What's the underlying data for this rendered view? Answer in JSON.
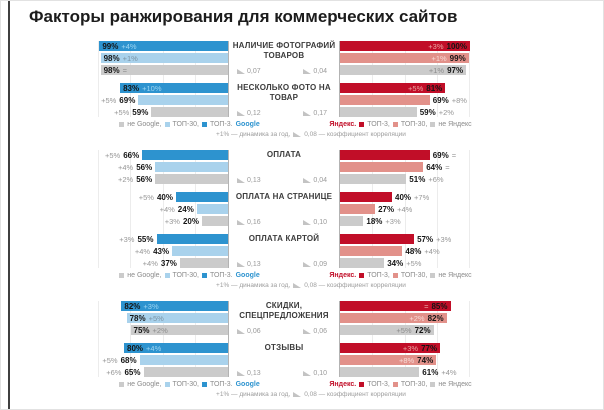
{
  "title": "Факторы ранжирования для коммерческих сайтов",
  "colors": {
    "google_top3": "#2D93CF",
    "google_top30": "#A9D2EC",
    "neutral": "#CBCBCB",
    "yandex_top3": "#C10E28",
    "yandex_top30": "#E2918A"
  },
  "legend_google": {
    "items": [
      {
        "label": "не Google,",
        "color_key": "neutral"
      },
      {
        "label": "ТОП-30,",
        "color_key": "google_top30"
      },
      {
        "label": "ТОП-3.",
        "color_key": "google_top3"
      }
    ],
    "brand": "Google"
  },
  "legend_yandex": {
    "brand": "Яндекс.",
    "items": [
      {
        "label": "ТОП-3,",
        "color_key": "yandex_top3"
      },
      {
        "label": "ТОП-30,",
        "color_key": "yandex_top30"
      },
      {
        "label": "не Яндекс",
        "color_key": "neutral"
      }
    ]
  },
  "footnote": {
    "dynamics": "+1% — динамика за год,",
    "correlation": "0,08 — коэффициент корреляции"
  },
  "chart_data": {
    "type": "bar",
    "orientation": "horizontal-paired",
    "unit": "%",
    "xlim": [
      0,
      100
    ],
    "grid": true,
    "engines": [
      "Google",
      "Яндекс"
    ],
    "series_order_google": [
      "ТОП-3",
      "ТОП-30",
      "не Google"
    ],
    "series_order_yandex": [
      "ТОП-3",
      "ТОП-30",
      "не Яндекс"
    ],
    "blocks": [
      {
        "factors": [
          {
            "label": "НАЛИЧИЕ ФОТОГРАФИЙ ТОВАРОВ",
            "google": {
              "corr": "0,07",
              "bars": [
                {
                  "v": 99,
                  "d": "+4%"
                },
                {
                  "v": 98,
                  "d": "+1%"
                },
                {
                  "v": 98,
                  "d": "="
                }
              ]
            },
            "yandex": {
              "corr": "0,04",
              "bars": [
                {
                  "v": 100,
                  "d": "+3%"
                },
                {
                  "v": 99,
                  "d": "+1%"
                },
                {
                  "v": 97,
                  "d": "+1%"
                }
              ]
            }
          },
          {
            "label": "НЕСКОЛЬКО ФОТО НА ТОВАР",
            "google": {
              "corr": "0,12",
              "bars": [
                {
                  "v": 83,
                  "d": "+10%"
                },
                {
                  "v": 69,
                  "d": "+5%"
                },
                {
                  "v": 59,
                  "d": "+5%"
                }
              ]
            },
            "yandex": {
              "corr": "0,17",
              "bars": [
                {
                  "v": 81,
                  "d": "+5%"
                },
                {
                  "v": 69,
                  "d": "+8%"
                },
                {
                  "v": 59,
                  "d": "+2%"
                }
              ]
            }
          }
        ]
      },
      {
        "factors": [
          {
            "label": "ОПЛАТА",
            "google": {
              "corr": "0,13",
              "bars": [
                {
                  "v": 66,
                  "d": "+5%"
                },
                {
                  "v": 56,
                  "d": "+4%"
                },
                {
                  "v": 56,
                  "d": "+2%"
                }
              ]
            },
            "yandex": {
              "corr": "0,04",
              "bars": [
                {
                  "v": 69,
                  "d": "="
                },
                {
                  "v": 64,
                  "d": "="
                },
                {
                  "v": 51,
                  "d": "+6%"
                }
              ]
            }
          },
          {
            "label": "ОПЛАТА НА СТРАНИЦЕ",
            "google": {
              "corr": "0,16",
              "bars": [
                {
                  "v": 40,
                  "d": "+5%"
                },
                {
                  "v": 24,
                  "d": "+4%"
                },
                {
                  "v": 20,
                  "d": "+3%"
                }
              ]
            },
            "yandex": {
              "corr": "0,10",
              "bars": [
                {
                  "v": 40,
                  "d": "+7%"
                },
                {
                  "v": 27,
                  "d": "+4%"
                },
                {
                  "v": 18,
                  "d": "+3%"
                }
              ]
            }
          },
          {
            "label": "ОПЛАТА КАРТОЙ",
            "google": {
              "corr": "0,13",
              "bars": [
                {
                  "v": 55,
                  "d": "+3%"
                },
                {
                  "v": 43,
                  "d": "+4%"
                },
                {
                  "v": 37,
                  "d": "+4%"
                }
              ]
            },
            "yandex": {
              "corr": "0,09",
              "bars": [
                {
                  "v": 57,
                  "d": "+3%"
                },
                {
                  "v": 48,
                  "d": "+4%"
                },
                {
                  "v": 34,
                  "d": "+5%"
                }
              ]
            }
          }
        ]
      },
      {
        "factors": [
          {
            "label": "СКИДКИ, СПЕЦПРЕДЛОЖЕНИЯ",
            "google": {
              "corr": "0,06",
              "bars": [
                {
                  "v": 82,
                  "d": "+3%"
                },
                {
                  "v": 78,
                  "d": "+5%"
                },
                {
                  "v": 75,
                  "d": "+2%"
                }
              ]
            },
            "yandex": {
              "corr": "0,06",
              "bars": [
                {
                  "v": 85,
                  "d": "="
                },
                {
                  "v": 82,
                  "d": "+2%"
                },
                {
                  "v": 72,
                  "d": "+5%"
                }
              ]
            }
          },
          {
            "label": "ОТЗЫВЫ",
            "google": {
              "corr": "0,13",
              "bars": [
                {
                  "v": 80,
                  "d": "+4%"
                },
                {
                  "v": 68,
                  "d": "+5%"
                },
                {
                  "v": 65,
                  "d": "+6%"
                }
              ]
            },
            "yandex": {
              "corr": "0,10",
              "bars": [
                {
                  "v": 77,
                  "d": "+3%"
                },
                {
                  "v": 74,
                  "d": "+8%"
                },
                {
                  "v": 61,
                  "d": "+4%"
                }
              ]
            }
          }
        ]
      }
    ]
  }
}
